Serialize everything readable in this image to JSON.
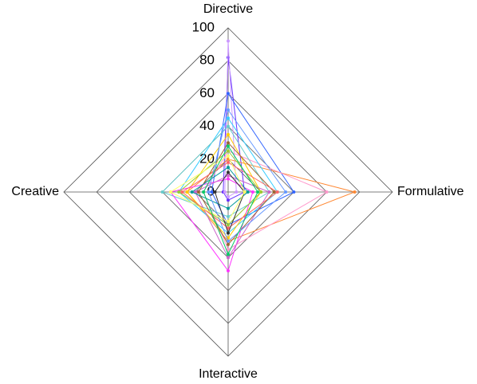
{
  "chart_data": {
    "type": "radar",
    "categories": [
      "Directive",
      "Formulative",
      "Interactive",
      "Creative"
    ],
    "ylim": [
      0,
      100
    ],
    "yticks": [
      0,
      20,
      40,
      60,
      80,
      100
    ],
    "grid": true,
    "series": [
      {
        "color": "#6633ff",
        "values": [
          82,
          10,
          5,
          3
        ]
      },
      {
        "color": "#cc99ff",
        "values": [
          92,
          5,
          3,
          2
        ]
      },
      {
        "color": "#3366ff",
        "values": [
          60,
          40,
          20,
          10
        ]
      },
      {
        "color": "#ff8833",
        "values": [
          20,
          77,
          30,
          25
        ]
      },
      {
        "color": "#ff99cc",
        "values": [
          25,
          60,
          35,
          15
        ]
      },
      {
        "color": "#33ccff",
        "values": [
          45,
          30,
          25,
          30
        ]
      },
      {
        "color": "#66cccc",
        "values": [
          40,
          25,
          15,
          40
        ]
      },
      {
        "color": "#ffcc00",
        "values": [
          35,
          20,
          28,
          25
        ]
      },
      {
        "color": "#ff33ff",
        "values": [
          8,
          15,
          48,
          35
        ]
      },
      {
        "color": "#cc66cc",
        "values": [
          10,
          25,
          40,
          20
        ]
      },
      {
        "color": "#996633",
        "values": [
          30,
          28,
          32,
          18
        ]
      },
      {
        "color": "#99cc33",
        "values": [
          25,
          20,
          20,
          30
        ]
      },
      {
        "color": "#009999",
        "values": [
          15,
          12,
          10,
          22
        ]
      },
      {
        "color": "#ff6666",
        "values": [
          18,
          30,
          22,
          28
        ]
      },
      {
        "color": "#6699ff",
        "values": [
          50,
          35,
          30,
          12
        ]
      },
      {
        "color": "#333333",
        "values": [
          12,
          10,
          25,
          8
        ]
      },
      {
        "color": "#ffff66",
        "values": [
          22,
          10,
          18,
          35
        ]
      },
      {
        "color": "#00cc66",
        "values": [
          28,
          18,
          38,
          15
        ]
      }
    ]
  }
}
